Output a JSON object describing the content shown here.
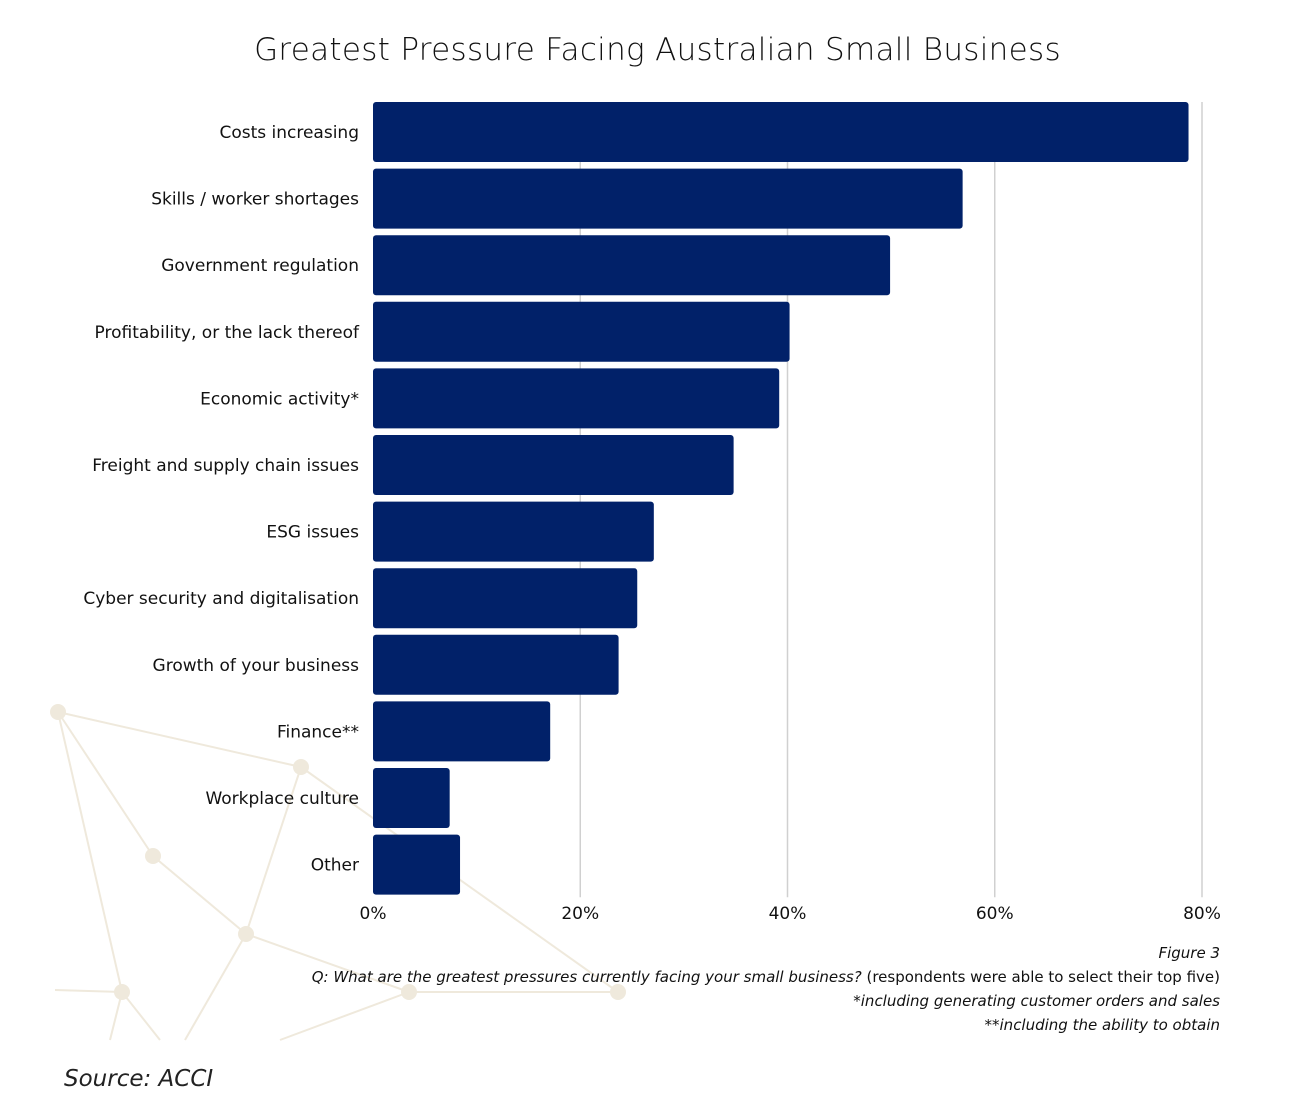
{
  "chart_data": {
    "type": "bar",
    "orientation": "horizontal",
    "title": "Greatest Pressure Facing Australian Small Business",
    "categories": [
      "Costs increasing",
      "Skills / worker shortages",
      "Government regulation",
      "Profitability, or the lack thereof",
      "Economic activity*",
      "Freight and supply chain issues",
      "ESG issues",
      "Cyber security and digitalisation",
      "Growth of your business",
      "Finance**",
      "Workplace culture",
      "Other"
    ],
    "values": [
      78.7,
      56.9,
      49.9,
      40.2,
      39.2,
      34.8,
      27.1,
      25.5,
      23.7,
      17.1,
      7.4,
      8.4
    ],
    "xlim": [
      0,
      80
    ],
    "xticks": [
      0,
      20,
      40,
      60,
      80
    ],
    "xtick_labels": [
      "0%",
      "20%",
      "40%",
      "60%",
      "80%"
    ],
    "grid": "vertical",
    "bar_color": "#012169",
    "xlabel": "",
    "ylabel": ""
  },
  "notes": {
    "figure": "Figure 3",
    "question_italic": "Q: What are the greatest pressures currently facing your small business?",
    "question_rest": " (respondents were able to select their top five)",
    "footnote1": "*including generating customer orders and sales",
    "footnote2": "**including the ability to obtain"
  },
  "source": "Source: ACCI"
}
